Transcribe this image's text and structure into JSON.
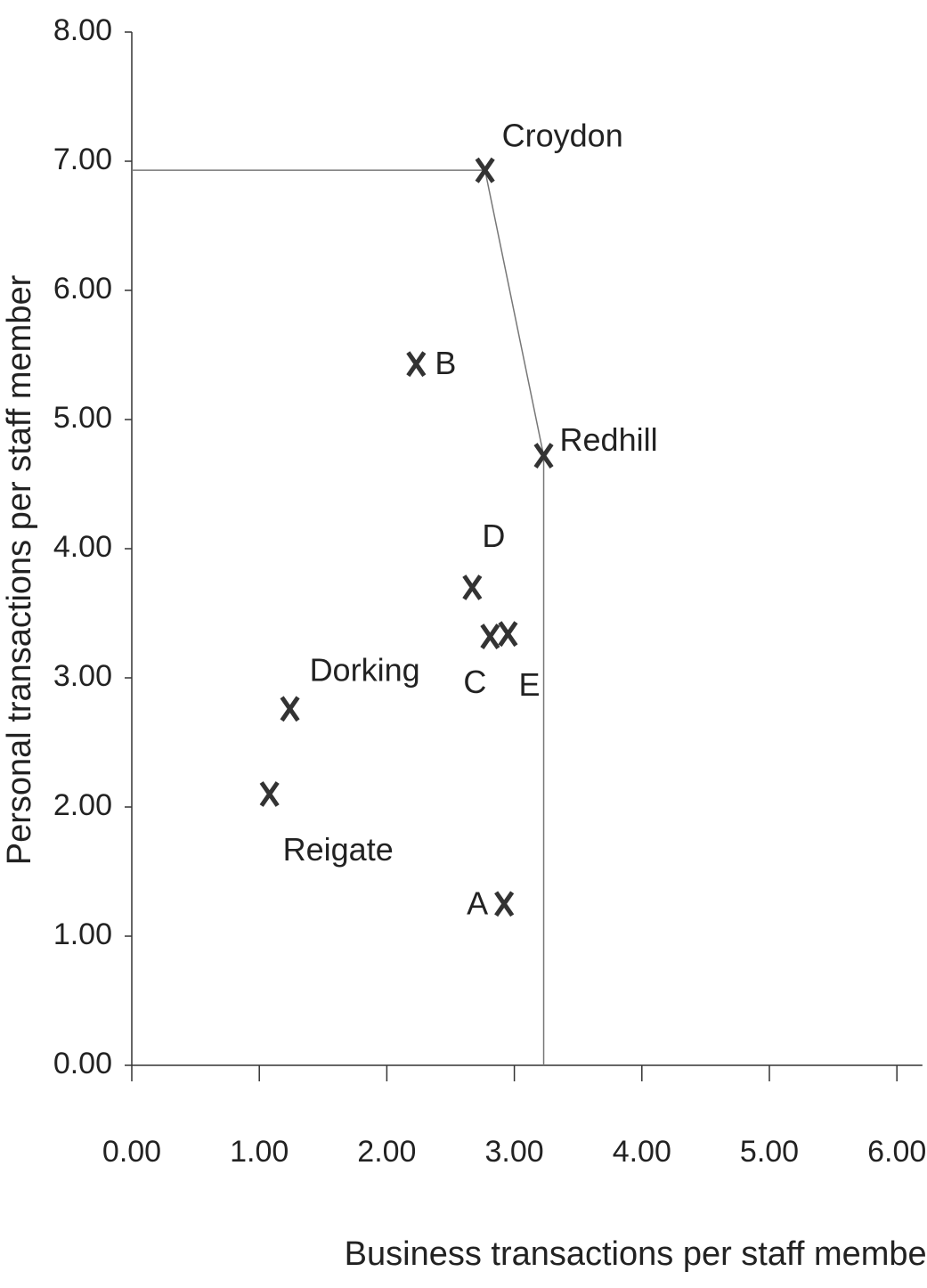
{
  "chart_data": {
    "type": "scatter",
    "x_label": "Business transactions per staff member",
    "y_label": "Personal transactions per staff member",
    "labels": [
      "Croydon",
      "Redhill",
      "B",
      "D",
      "C",
      "E",
      "Dorking",
      "Reigate",
      "A"
    ],
    "x": [
      2.77,
      3.23,
      2.23,
      2.67,
      2.81,
      2.95,
      1.24,
      1.08,
      2.92
    ],
    "values": [
      6.93,
      4.72,
      5.43,
      3.7,
      3.32,
      3.34,
      2.76,
      2.1,
      1.25
    ],
    "color": "#333333",
    "frontier": {
      "x": [
        0,
        2.77,
        3.23,
        3.23
      ],
      "y": [
        6.93,
        6.93,
        4.72,
        0
      ],
      "color": "#777777"
    },
    "xlim": [
      0,
      6.2
    ],
    "ylim": [
      0,
      8
    ],
    "xticks": [
      {
        "value": 0,
        "label": "0.00"
      },
      {
        "value": 1,
        "label": "1.00"
      },
      {
        "value": 2,
        "label": "2.00"
      },
      {
        "value": 3,
        "label": "3.00"
      },
      {
        "value": 4,
        "label": "4.00"
      },
      {
        "value": 5,
        "label": "5.00"
      },
      {
        "value": 6,
        "label": "6.00"
      }
    ],
    "yticks": [
      {
        "value": 0,
        "label": "0.00"
      },
      {
        "value": 1,
        "label": "1.00"
      },
      {
        "value": 2,
        "label": "2.00"
      },
      {
        "value": 3,
        "label": "3.00"
      },
      {
        "value": 4,
        "label": "4.00"
      },
      {
        "value": 5,
        "label": "5.00"
      },
      {
        "value": 6,
        "label": "6.00"
      },
      {
        "value": 7,
        "label": "7.00"
      },
      {
        "value": 8,
        "label": "8.00"
      }
    ],
    "grid": false
  }
}
